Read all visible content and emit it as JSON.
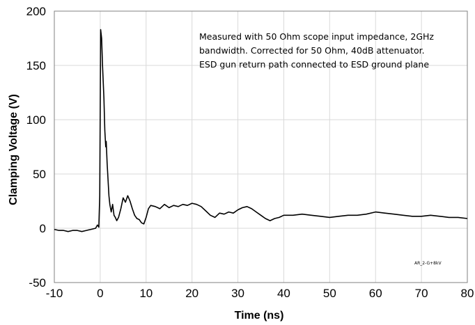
{
  "chart_data": {
    "type": "line",
    "title": "",
    "xlabel": "Time (ns)",
    "ylabel": "Clamping Voltage (V)",
    "xlim": [
      -10,
      80
    ],
    "ylim": [
      -50,
      200
    ],
    "x_ticks": [
      -10,
      0,
      10,
      20,
      30,
      40,
      50,
      60,
      70,
      80
    ],
    "y_ticks": [
      -50,
      0,
      50,
      100,
      150,
      200
    ],
    "grid": true,
    "legend": "none",
    "annotations": [
      "Measured with 50 Ohm scope input impedance, 2GHz",
      "bandwidth.  Corrected for 50 Ohm, 40dB attenuator.",
      "ESD gun return path connected to ESD ground plane"
    ],
    "code_label": "AR_2-G+8kV",
    "line_color": "#000000",
    "series": [
      {
        "points": [
          [
            -10,
            -1
          ],
          [
            -9,
            -2
          ],
          [
            -8,
            -2
          ],
          [
            -7,
            -3
          ],
          [
            -6,
            -2
          ],
          [
            -5,
            -2
          ],
          [
            -4,
            -3
          ],
          [
            -3,
            -2
          ],
          [
            -2,
            -1
          ],
          [
            -1,
            0
          ],
          [
            -0.6,
            3
          ],
          [
            -0.3,
            1
          ],
          [
            -0.1,
            30
          ],
          [
            0,
            110
          ],
          [
            0.1,
            183
          ],
          [
            0.3,
            175
          ],
          [
            0.5,
            150
          ],
          [
            0.8,
            120
          ],
          [
            1.0,
            90
          ],
          [
            1.2,
            75
          ],
          [
            1.3,
            80
          ],
          [
            1.5,
            60
          ],
          [
            1.7,
            45
          ],
          [
            1.9,
            30
          ],
          [
            2.1,
            22
          ],
          [
            2.4,
            15
          ],
          [
            2.7,
            22
          ],
          [
            3.0,
            12
          ],
          [
            3.3,
            10
          ],
          [
            3.6,
            7
          ],
          [
            4.0,
            10
          ],
          [
            4.5,
            18
          ],
          [
            5.0,
            28
          ],
          [
            5.5,
            24
          ],
          [
            6.0,
            30
          ],
          [
            6.5,
            25
          ],
          [
            7.0,
            18
          ],
          [
            7.5,
            12
          ],
          [
            8.0,
            9
          ],
          [
            8.5,
            8
          ],
          [
            9.0,
            5
          ],
          [
            9.5,
            4
          ],
          [
            10.0,
            10
          ],
          [
            10.5,
            18
          ],
          [
            11.0,
            21
          ],
          [
            12,
            20
          ],
          [
            13,
            18
          ],
          [
            14,
            22
          ],
          [
            15,
            19
          ],
          [
            16,
            21
          ],
          [
            17,
            20
          ],
          [
            18,
            22
          ],
          [
            19,
            21
          ],
          [
            20,
            23
          ],
          [
            21,
            22
          ],
          [
            22,
            20
          ],
          [
            23,
            16
          ],
          [
            24,
            12
          ],
          [
            25,
            10
          ],
          [
            26,
            14
          ],
          [
            27,
            13
          ],
          [
            28,
            15
          ],
          [
            29,
            14
          ],
          [
            30,
            17
          ],
          [
            31,
            19
          ],
          [
            32,
            20
          ],
          [
            33,
            18
          ],
          [
            34,
            15
          ],
          [
            35,
            12
          ],
          [
            36,
            9
          ],
          [
            37,
            7
          ],
          [
            38,
            9
          ],
          [
            39,
            10
          ],
          [
            40,
            12
          ],
          [
            42,
            12
          ],
          [
            44,
            13
          ],
          [
            46,
            12
          ],
          [
            48,
            11
          ],
          [
            50,
            10
          ],
          [
            52,
            11
          ],
          [
            54,
            12
          ],
          [
            56,
            12
          ],
          [
            58,
            13
          ],
          [
            60,
            15
          ],
          [
            62,
            14
          ],
          [
            64,
            13
          ],
          [
            66,
            12
          ],
          [
            68,
            11
          ],
          [
            70,
            11
          ],
          [
            72,
            12
          ],
          [
            74,
            11
          ],
          [
            76,
            10
          ],
          [
            78,
            10
          ],
          [
            80,
            9
          ]
        ]
      }
    ]
  }
}
